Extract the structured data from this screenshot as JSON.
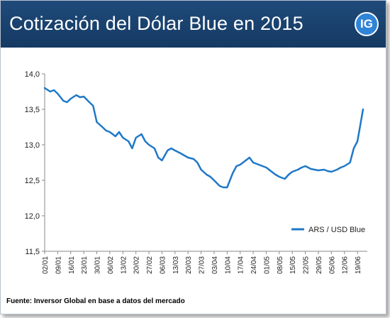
{
  "header": {
    "title": "Cotización del Dólar Blue en 2015",
    "logo_text": "IG"
  },
  "source_note": "Fuente: Inversor Global en base a datos del mercado",
  "colors": {
    "header_bg": "#1a4270",
    "line": "#1f78c8",
    "logo_bg": "#2f84d8"
  },
  "chart_data": {
    "type": "line",
    "title": "",
    "xlabel": "",
    "ylabel": "",
    "ylim": [
      11.5,
      14.0
    ],
    "y_ticks": [
      "11,5",
      "12,0",
      "12,5",
      "13,0",
      "13,5",
      "14,0"
    ],
    "y_tick_values": [
      11.5,
      12.0,
      12.5,
      13.0,
      13.5,
      14.0
    ],
    "x_ticks": [
      "02/01",
      "09/01",
      "16/01",
      "23/01",
      "30/01",
      "06/02",
      "13/02",
      "20/02",
      "27/02",
      "06/03",
      "13/03",
      "20/03",
      "27/03",
      "03/04",
      "10/04",
      "17/04",
      "24/04",
      "01/05",
      "08/05",
      "15/05",
      "22/05",
      "29/05",
      "05/06",
      "12/06",
      "19/06"
    ],
    "grid": false,
    "legend_position": "bottom-right",
    "series": [
      {
        "name": "ARS / USD Blue",
        "x_dates": [
          "02/01",
          "05/01",
          "07/01",
          "09/01",
          "12/01",
          "14/01",
          "16/01",
          "19/01",
          "21/01",
          "23/01",
          "26/01",
          "28/01",
          "30/01",
          "02/02",
          "04/02",
          "06/02",
          "09/02",
          "11/02",
          "13/02",
          "16/02",
          "18/02",
          "20/02",
          "23/02",
          "25/02",
          "27/02",
          "02/03",
          "04/03",
          "06/03",
          "09/03",
          "11/03",
          "13/03",
          "16/03",
          "18/03",
          "20/03",
          "23/03",
          "25/03",
          "27/03",
          "30/03",
          "01/04",
          "03/04",
          "06/04",
          "08/04",
          "10/04",
          "13/04",
          "15/04",
          "17/04",
          "20/04",
          "22/04",
          "24/04",
          "27/04",
          "29/04",
          "01/05",
          "04/05",
          "06/05",
          "08/05",
          "11/05",
          "13/05",
          "15/05",
          "18/05",
          "20/05",
          "22/05",
          "25/05",
          "27/05",
          "29/05",
          "01/06",
          "03/06",
          "05/06",
          "08/06",
          "10/06",
          "12/06",
          "15/06",
          "17/06",
          "19/06",
          "22/06"
        ],
        "values": [
          13.8,
          13.75,
          13.77,
          13.72,
          13.62,
          13.6,
          13.65,
          13.7,
          13.67,
          13.68,
          13.6,
          13.55,
          13.32,
          13.25,
          13.2,
          13.18,
          13.12,
          13.18,
          13.1,
          13.05,
          12.95,
          13.1,
          13.15,
          13.05,
          13.0,
          12.95,
          12.82,
          12.78,
          12.92,
          12.95,
          12.92,
          12.88,
          12.85,
          12.82,
          12.8,
          12.75,
          12.65,
          12.58,
          12.55,
          12.5,
          12.42,
          12.4,
          12.4,
          12.6,
          12.7,
          12.72,
          12.78,
          12.82,
          12.75,
          12.72,
          12.7,
          12.68,
          12.62,
          12.58,
          12.55,
          12.52,
          12.58,
          12.62,
          12.65,
          12.68,
          12.7,
          12.66,
          12.65,
          12.64,
          12.65,
          12.63,
          12.62,
          12.65,
          12.68,
          12.7,
          12.75,
          12.95,
          13.05,
          13.5
        ]
      }
    ]
  }
}
